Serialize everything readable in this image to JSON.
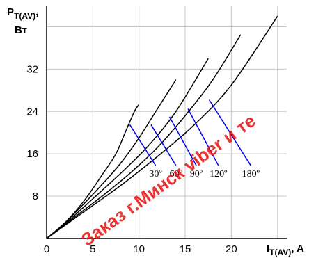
{
  "chart_data": {
    "type": "line",
    "ylabel": {
      "main": "P",
      "sub": "T(AV)",
      "tail": ",",
      "unit": "Вт"
    },
    "xlabel": {
      "main": "I",
      "sub": "T(AV)",
      "tail": ", A"
    },
    "xlim": [
      0,
      26
    ],
    "ylim": [
      0,
      44
    ],
    "xticks": [
      0,
      5,
      10,
      15,
      20
    ],
    "yticks": [
      8,
      16,
      24,
      32
    ],
    "grid": true,
    "series": [
      {
        "name": "30º",
        "points": [
          [
            0,
            0
          ],
          [
            2,
            3
          ],
          [
            4,
            7
          ],
          [
            6,
            12
          ],
          [
            7.5,
            16
          ],
          [
            8.5,
            20
          ],
          [
            9.5,
            24
          ],
          [
            10,
            25.3
          ]
        ]
      },
      {
        "name": "60º",
        "points": [
          [
            0,
            0
          ],
          [
            2,
            3
          ],
          [
            4,
            6.5
          ],
          [
            6,
            10.2
          ],
          [
            8,
            14.2
          ],
          [
            10,
            19
          ],
          [
            12,
            24.5
          ],
          [
            14,
            30
          ]
        ]
      },
      {
        "name": "90º",
        "points": [
          [
            0,
            0
          ],
          [
            2,
            2.8
          ],
          [
            5,
            7.5
          ],
          [
            8,
            12.3
          ],
          [
            11,
            17.5
          ],
          [
            14,
            24
          ],
          [
            17.5,
            34
          ]
        ]
      },
      {
        "name": "120º",
        "points": [
          [
            0,
            0
          ],
          [
            3,
            4
          ],
          [
            6,
            8
          ],
          [
            9,
            12.3
          ],
          [
            12,
            17.2
          ],
          [
            15,
            23.2
          ],
          [
            18,
            30
          ],
          [
            21,
            38.5
          ]
        ]
      },
      {
        "name": "180º",
        "points": [
          [
            0,
            0
          ],
          [
            4,
            5
          ],
          [
            8,
            10
          ],
          [
            12,
            15.5
          ],
          [
            16,
            21.5
          ],
          [
            20,
            29
          ],
          [
            25,
            42
          ]
        ]
      }
    ],
    "markers": [
      {
        "label": "30º",
        "start": [
          9,
          21.5
        ],
        "end": [
          11.8,
          13.8
        ]
      },
      {
        "label": "60º",
        "start": [
          11.3,
          21.5
        ],
        "end": [
          14,
          13.8
        ]
      },
      {
        "label": "90º",
        "start": [
          13.3,
          23
        ],
        "end": [
          16.2,
          13.8
        ]
      },
      {
        "label": "120º",
        "start": [
          15.3,
          24.5
        ],
        "end": [
          18.6,
          13.8
        ]
      },
      {
        "label": "180º",
        "start": [
          17.6,
          26.2
        ],
        "end": [
          22.1,
          13.8
        ]
      }
    ]
  },
  "watermark": "Заказ г.Минск viber и те"
}
